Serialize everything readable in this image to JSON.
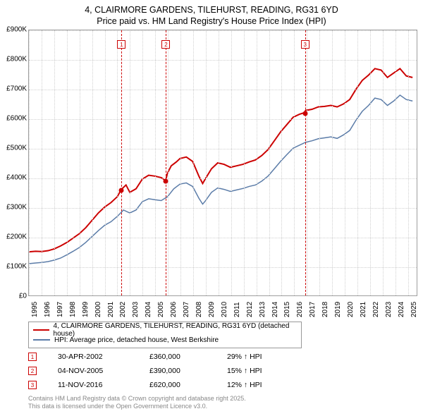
{
  "title": {
    "line1": "4, CLAIRMORE GARDENS, TILEHURST, READING, RG31 6YD",
    "line2": "Price paid vs. HM Land Registry's House Price Index (HPI)",
    "fontsize": 12.5
  },
  "chart": {
    "type": "line",
    "xlim": [
      1995,
      2025.8
    ],
    "ylim": [
      0,
      900000
    ],
    "ytick_step": 100000,
    "ylabels": [
      "£0",
      "£100K",
      "£200K",
      "£300K",
      "£400K",
      "£500K",
      "£600K",
      "£700K",
      "£800K",
      "£900K"
    ],
    "xticks": [
      1995,
      1996,
      1997,
      1998,
      1999,
      2000,
      2001,
      2002,
      2003,
      2004,
      2005,
      2006,
      2007,
      2008,
      2009,
      2010,
      2011,
      2012,
      2013,
      2014,
      2015,
      2016,
      2017,
      2018,
      2019,
      2020,
      2021,
      2022,
      2023,
      2024,
      2025
    ],
    "grid_color": "#d0d0d0",
    "background_color": "#ffffff",
    "series": [
      {
        "name": "property",
        "label": "4, CLAIRMORE GARDENS, TILEHURST, READING, RG31 6YD (detached house)",
        "color": "#cc0000",
        "line_width": 2,
        "data": [
          [
            1995.0,
            148000
          ],
          [
            1995.5,
            150000
          ],
          [
            1996.0,
            149000
          ],
          [
            1996.5,
            152000
          ],
          [
            1997.0,
            158000
          ],
          [
            1997.5,
            168000
          ],
          [
            1998.0,
            180000
          ],
          [
            1998.5,
            195000
          ],
          [
            1999.0,
            210000
          ],
          [
            1999.5,
            230000
          ],
          [
            2000.0,
            255000
          ],
          [
            2000.5,
            280000
          ],
          [
            2001.0,
            300000
          ],
          [
            2001.5,
            315000
          ],
          [
            2002.0,
            335000
          ],
          [
            2002.33,
            360000
          ],
          [
            2002.7,
            375000
          ],
          [
            2003.0,
            350000
          ],
          [
            2003.5,
            362000
          ],
          [
            2004.0,
            395000
          ],
          [
            2004.5,
            408000
          ],
          [
            2005.0,
            405000
          ],
          [
            2005.5,
            400000
          ],
          [
            2005.85,
            390000
          ],
          [
            2006.0,
            415000
          ],
          [
            2006.3,
            440000
          ],
          [
            2006.7,
            453000
          ],
          [
            2007.0,
            465000
          ],
          [
            2007.5,
            470000
          ],
          [
            2008.0,
            455000
          ],
          [
            2008.5,
            405000
          ],
          [
            2008.8,
            380000
          ],
          [
            2009.0,
            395000
          ],
          [
            2009.5,
            430000
          ],
          [
            2010.0,
            450000
          ],
          [
            2010.5,
            445000
          ],
          [
            2011.0,
            435000
          ],
          [
            2011.5,
            440000
          ],
          [
            2012.0,
            445000
          ],
          [
            2012.5,
            453000
          ],
          [
            2013.0,
            460000
          ],
          [
            2013.5,
            475000
          ],
          [
            2014.0,
            495000
          ],
          [
            2014.5,
            525000
          ],
          [
            2015.0,
            555000
          ],
          [
            2015.5,
            580000
          ],
          [
            2016.0,
            605000
          ],
          [
            2016.5,
            615000
          ],
          [
            2016.86,
            620000
          ],
          [
            2017.0,
            628000
          ],
          [
            2017.5,
            632000
          ],
          [
            2018.0,
            640000
          ],
          [
            2018.5,
            642000
          ],
          [
            2019.0,
            645000
          ],
          [
            2019.5,
            640000
          ],
          [
            2020.0,
            650000
          ],
          [
            2020.5,
            665000
          ],
          [
            2021.0,
            700000
          ],
          [
            2021.5,
            730000
          ],
          [
            2022.0,
            748000
          ],
          [
            2022.5,
            770000
          ],
          [
            2023.0,
            765000
          ],
          [
            2023.5,
            740000
          ],
          [
            2024.0,
            755000
          ],
          [
            2024.5,
            770000
          ],
          [
            2025.0,
            745000
          ],
          [
            2025.5,
            740000
          ]
        ]
      },
      {
        "name": "hpi",
        "label": "HPI: Average price, detached house, West Berkshire",
        "color": "#5b7ca8",
        "line_width": 1.5,
        "data": [
          [
            1995.0,
            108000
          ],
          [
            1995.5,
            110000
          ],
          [
            1996.0,
            112000
          ],
          [
            1996.5,
            115000
          ],
          [
            1997.0,
            120000
          ],
          [
            1997.5,
            127000
          ],
          [
            1998.0,
            138000
          ],
          [
            1998.5,
            150000
          ],
          [
            1999.0,
            163000
          ],
          [
            1999.5,
            180000
          ],
          [
            2000.0,
            200000
          ],
          [
            2000.5,
            220000
          ],
          [
            2001.0,
            238000
          ],
          [
            2001.5,
            250000
          ],
          [
            2002.0,
            268000
          ],
          [
            2002.5,
            290000
          ],
          [
            2003.0,
            280000
          ],
          [
            2003.5,
            290000
          ],
          [
            2004.0,
            318000
          ],
          [
            2004.5,
            328000
          ],
          [
            2005.0,
            325000
          ],
          [
            2005.5,
            322000
          ],
          [
            2006.0,
            335000
          ],
          [
            2006.5,
            362000
          ],
          [
            2007.0,
            378000
          ],
          [
            2007.5,
            382000
          ],
          [
            2008.0,
            370000
          ],
          [
            2008.5,
            330000
          ],
          [
            2008.8,
            310000
          ],
          [
            2009.0,
            320000
          ],
          [
            2009.5,
            350000
          ],
          [
            2010.0,
            365000
          ],
          [
            2010.5,
            360000
          ],
          [
            2011.0,
            353000
          ],
          [
            2011.5,
            358000
          ],
          [
            2012.0,
            363000
          ],
          [
            2012.5,
            370000
          ],
          [
            2013.0,
            375000
          ],
          [
            2013.5,
            388000
          ],
          [
            2014.0,
            405000
          ],
          [
            2014.5,
            430000
          ],
          [
            2015.0,
            455000
          ],
          [
            2015.5,
            478000
          ],
          [
            2016.0,
            500000
          ],
          [
            2016.5,
            510000
          ],
          [
            2017.0,
            520000
          ],
          [
            2017.5,
            525000
          ],
          [
            2018.0,
            532000
          ],
          [
            2018.5,
            535000
          ],
          [
            2019.0,
            538000
          ],
          [
            2019.5,
            533000
          ],
          [
            2020.0,
            545000
          ],
          [
            2020.5,
            560000
          ],
          [
            2021.0,
            595000
          ],
          [
            2021.5,
            625000
          ],
          [
            2022.0,
            645000
          ],
          [
            2022.5,
            670000
          ],
          [
            2023.0,
            665000
          ],
          [
            2023.5,
            645000
          ],
          [
            2024.0,
            660000
          ],
          [
            2024.5,
            680000
          ],
          [
            2025.0,
            665000
          ],
          [
            2025.5,
            660000
          ]
        ]
      }
    ],
    "sales": [
      {
        "n": "1",
        "date": "30-APR-2002",
        "x": 2002.33,
        "price_label": "£360,000",
        "price": 360000,
        "delta": "29% ↑ HPI"
      },
      {
        "n": "2",
        "date": "04-NOV-2005",
        "x": 2005.85,
        "price_label": "£390,000",
        "price": 390000,
        "delta": "15% ↑ HPI"
      },
      {
        "n": "3",
        "date": "11-NOV-2016",
        "x": 2016.86,
        "price_label": "£620,000",
        "price": 620000,
        "delta": "12% ↑ HPI"
      }
    ],
    "sale_line_color": "#cc0000",
    "sale_marker_color": "#cc0000"
  },
  "credits": {
    "line1": "Contains HM Land Registry data © Crown copyright and database right 2025.",
    "line2": "This data is licensed under the Open Government Licence v3.0.",
    "color": "#888888"
  }
}
